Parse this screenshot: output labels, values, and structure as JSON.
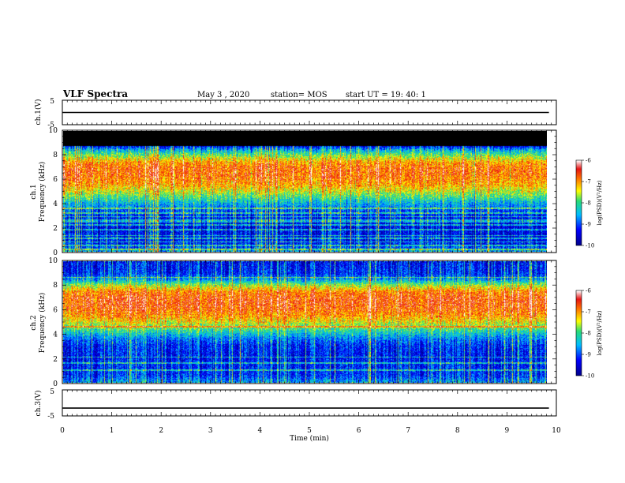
{
  "header": {
    "title": "VLF Spectra",
    "date": "May 3 , 2020",
    "station": "station= MOS",
    "start_ut": "start UT = 19: 40: 1"
  },
  "axis": {
    "x_label": "Time (min)",
    "x_ticks": [
      "0",
      "1",
      "2",
      "3",
      "4",
      "5",
      "6",
      "7",
      "8",
      "9",
      "10"
    ]
  },
  "panels": {
    "ch1_wave": {
      "ylabel": "ch.1(V)",
      "ticks": [
        "5",
        "-5"
      ]
    },
    "ch1_spec": {
      "ylabel_ch": "ch.1",
      "ylabel": "Frequency (kHz)",
      "ticks": [
        "10",
        "8",
        "6",
        "4",
        "2",
        "0"
      ]
    },
    "ch2_spec": {
      "ylabel_ch": "ch.2",
      "ylabel": "Frequency (kHz)",
      "ticks": [
        "10",
        "8",
        "6",
        "4",
        "2",
        "0"
      ]
    },
    "ch3_wave": {
      "ylabel": "ch.3(V)",
      "ticks": [
        "5",
        "-5"
      ]
    }
  },
  "colorbar": {
    "label": "log(PSD)(V²/Hz)",
    "ticks": [
      "-6",
      "-7",
      "-8",
      "-9",
      "-10"
    ]
  },
  "chart_data": {
    "type": "heatmap",
    "title": "VLF Spectra",
    "xlabel": "Time (min)",
    "xlim": [
      0,
      10
    ],
    "data_end_min": 9.85,
    "series": [
      {
        "name": "ch.1(V)",
        "type": "line",
        "ylim": [
          -5,
          5
        ],
        "value_approx": 0
      },
      {
        "name": "ch.1",
        "type": "heatmap",
        "ylabel": "Frequency (kHz)",
        "ylim": [
          0,
          10
        ],
        "clim": [
          -10,
          -6
        ],
        "profile_khz": [
          0,
          0.5,
          1,
          2,
          3,
          3.5,
          4,
          4.5,
          5,
          5.5,
          6,
          6.5,
          7,
          7.5,
          8,
          8.5,
          9,
          10
        ],
        "profile_log_psd": [
          -8.5,
          -9.2,
          -9.3,
          -9.4,
          -9.2,
          -8.9,
          -8.5,
          -8.0,
          -7.5,
          -7.1,
          -6.9,
          -6.8,
          -6.8,
          -7.1,
          -7.8,
          -8.6,
          -10,
          -10
        ]
      },
      {
        "name": "ch.2",
        "type": "heatmap",
        "ylabel": "Frequency (kHz)",
        "ylim": [
          0,
          10
        ],
        "clim": [
          -10,
          -6
        ],
        "profile_khz": [
          0,
          0.5,
          1,
          2,
          3,
          3.5,
          4,
          4.5,
          5,
          5.5,
          6,
          6.5,
          7,
          7.5,
          8,
          8.5,
          9,
          10
        ],
        "profile_log_psd": [
          -8.6,
          -9.1,
          -9.2,
          -9.3,
          -9.2,
          -8.9,
          -8.4,
          -7.9,
          -7.4,
          -7.0,
          -6.8,
          -6.7,
          -6.7,
          -6.9,
          -7.6,
          -8.6,
          -9.2,
          -9.3
        ]
      },
      {
        "name": "ch.3(V)",
        "type": "line",
        "ylim": [
          -5,
          5
        ],
        "value_approx": -2
      }
    ]
  }
}
